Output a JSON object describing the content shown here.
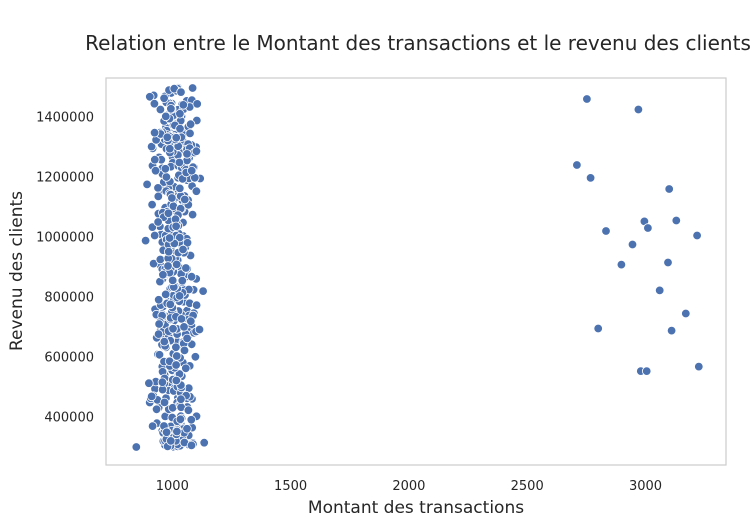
{
  "chart_data": {
    "type": "scatter",
    "title": "Relation entre le Montant des transactions et le revenu des clients",
    "xlabel": "Montant des transactions",
    "ylabel": "Revenu des clients",
    "xlim": [
      720,
      3340
    ],
    "ylim": [
      240000,
      1530000
    ],
    "xticks": [
      "1000",
      "1500",
      "2000",
      "2500",
      "3000"
    ],
    "yticks": [
      "400000",
      "600000",
      "800000",
      "1000000",
      "1200000",
      "1400000"
    ],
    "grid": false,
    "legend": "none",
    "marker_color": "#4c72b0",
    "cluster": {
      "x_range": [
        860,
        1135
      ],
      "x_center": 1010,
      "y_range": [
        300000,
        1500000
      ],
      "count": 500
    },
    "points": [
      {
        "x": 848,
        "y": 300000
      },
      {
        "x": 2752,
        "y": 1460000
      },
      {
        "x": 2970,
        "y": 1425000
      },
      {
        "x": 2710,
        "y": 1240000
      },
      {
        "x": 2768,
        "y": 1197000
      },
      {
        "x": 3100,
        "y": 1160000
      },
      {
        "x": 3130,
        "y": 1055000
      },
      {
        "x": 2995,
        "y": 1052000
      },
      {
        "x": 3010,
        "y": 1030000
      },
      {
        "x": 2833,
        "y": 1020000
      },
      {
        "x": 3218,
        "y": 1005000
      },
      {
        "x": 2945,
        "y": 975000
      },
      {
        "x": 3095,
        "y": 915000
      },
      {
        "x": 2898,
        "y": 908000
      },
      {
        "x": 3060,
        "y": 822000
      },
      {
        "x": 3170,
        "y": 745000
      },
      {
        "x": 2800,
        "y": 695000
      },
      {
        "x": 3110,
        "y": 688000
      },
      {
        "x": 3225,
        "y": 568000
      },
      {
        "x": 2980,
        "y": 553000
      },
      {
        "x": 3005,
        "y": 553000
      }
    ]
  }
}
